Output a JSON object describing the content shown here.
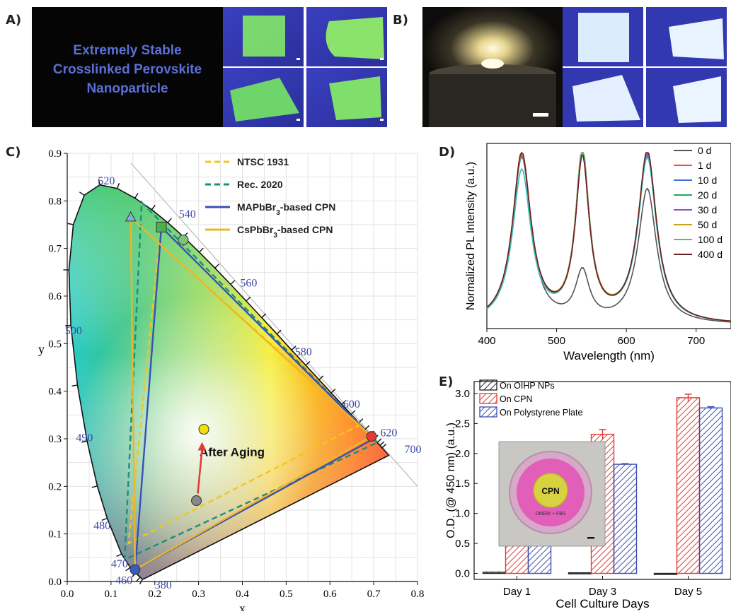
{
  "panels": {
    "a": "A)",
    "b": "B)",
    "c": "C)",
    "d": "D)",
    "e": "E)"
  },
  "panel_a": {
    "title_lines": [
      "Extremely Stable",
      "Crosslinked Perovskite",
      "Nanoparticle"
    ]
  },
  "chart_data": [
    {
      "id": "C",
      "type": "scatter",
      "xlabel": "x",
      "ylabel": "y",
      "xlim": [
        0.0,
        0.8
      ],
      "ylim": [
        0.0,
        0.9
      ],
      "xticks": [
        "0.0",
        "0.1",
        "0.2",
        "0.3",
        "0.4",
        "0.5",
        "0.6",
        "0.7",
        "0.8"
      ],
      "yticks": [
        "0.0",
        "0.1",
        "0.2",
        "0.3",
        "0.4",
        "0.5",
        "0.6",
        "0.7",
        "0.8",
        "0.9"
      ],
      "grid": true,
      "wavelength_labels": [
        {
          "text": "520",
          "x": 0.07,
          "y": 0.835
        },
        {
          "text": "540",
          "x": 0.255,
          "y": 0.765
        },
        {
          "text": "560",
          "x": 0.395,
          "y": 0.62
        },
        {
          "text": "580",
          "x": 0.52,
          "y": 0.475
        },
        {
          "text": "600",
          "x": 0.63,
          "y": 0.365
        },
        {
          "text": "620",
          "x": 0.715,
          "y": 0.305
        },
        {
          "text": "700",
          "x": 0.77,
          "y": 0.27
        },
        {
          "text": "500",
          "x": -0.005,
          "y": 0.52
        },
        {
          "text": "490",
          "x": 0.02,
          "y": 0.295
        },
        {
          "text": "480",
          "x": 0.06,
          "y": 0.11
        },
        {
          "text": "470",
          "x": 0.1,
          "y": 0.03
        },
        {
          "text": "460",
          "x": 0.11,
          "y": -0.005
        },
        {
          "text": "380",
          "x": 0.2,
          "y": -0.015
        }
      ],
      "legend": [
        {
          "label": "NTSC 1931",
          "color": "#f5c518",
          "dash": true
        },
        {
          "label": "Rec. 2020",
          "color": "#1a8f7a",
          "dash": true
        },
        {
          "label": "MAPbBr3-based CPN",
          "color": "#3b4fb4",
          "dash": false
        },
        {
          "label": "CsPbBr3-based CPN",
          "color": "#f0b429",
          "dash": false
        }
      ],
      "series": [
        {
          "name": "NTSC 1931",
          "points": [
            [
              0.67,
              0.33
            ],
            [
              0.21,
              0.71
            ],
            [
              0.14,
              0.08
            ]
          ]
        },
        {
          "name": "Rec. 2020",
          "points": [
            [
              0.708,
              0.292
            ],
            [
              0.17,
              0.797
            ],
            [
              0.131,
              0.046
            ]
          ]
        },
        {
          "name": "MAPbBr3-based CPN",
          "points": [
            [
              0.7,
              0.3
            ],
            [
              0.215,
              0.745
            ],
            [
              0.155,
              0.025
            ]
          ]
        },
        {
          "name": "CsPbBr3-based CPN",
          "points": [
            [
              0.695,
              0.305
            ],
            [
              0.145,
              0.765
            ],
            [
              0.155,
              0.025
            ]
          ]
        }
      ],
      "markers": [
        {
          "shape": "triangle",
          "x": 0.145,
          "y": 0.765,
          "color": "#7fb3d5"
        },
        {
          "shape": "square",
          "x": 0.215,
          "y": 0.745,
          "color": "#4caf50"
        },
        {
          "shape": "circle",
          "x": 0.265,
          "y": 0.718,
          "color": "#7cc47c"
        },
        {
          "shape": "circle",
          "x": 0.695,
          "y": 0.305,
          "color": "#e53935"
        },
        {
          "shape": "circle",
          "x": 0.155,
          "y": 0.025,
          "color": "#3b5bbf"
        },
        {
          "shape": "circle",
          "x": 0.295,
          "y": 0.17,
          "color": "#888888"
        },
        {
          "shape": "circle",
          "x": 0.312,
          "y": 0.32,
          "color": "#f3e000"
        }
      ],
      "annotation": "After Aging"
    },
    {
      "id": "D",
      "type": "line",
      "xlabel": "Wavelength (nm)",
      "ylabel": "Normalized PL Intensity (a.u.)",
      "xlim": [
        400,
        750
      ],
      "xticks": [
        "400",
        "500",
        "600",
        "700"
      ],
      "legend_placement": "top-right",
      "peaks": [
        450,
        537,
        630
      ],
      "series": [
        {
          "name": "0 d",
          "color": "#555555",
          "heights": [
            0.98,
            0.28,
            0.78
          ]
        },
        {
          "name": "1 d",
          "color": "#ff4444",
          "heights": [
            0.98,
            0.93,
            0.97
          ]
        },
        {
          "name": "10 d",
          "color": "#3d6fd6",
          "heights": [
            0.96,
            0.95,
            0.98
          ]
        },
        {
          "name": "20 d",
          "color": "#22aa55",
          "heights": [
            0.95,
            0.94,
            0.96
          ]
        },
        {
          "name": "30 d",
          "color": "#9b4dc9",
          "heights": [
            0.96,
            0.93,
            0.97
          ]
        },
        {
          "name": "50 d",
          "color": "#c8a21c",
          "heights": [
            0.97,
            0.98,
            0.99
          ]
        },
        {
          "name": "100 d",
          "color": "#30c0c0",
          "heights": [
            0.88,
            0.96,
            0.95
          ]
        },
        {
          "name": "400 d",
          "color": "#6b1f1f",
          "heights": [
            0.98,
            0.93,
            0.99
          ]
        }
      ]
    },
    {
      "id": "E",
      "type": "bar",
      "xlabel": "Cell Culture Days",
      "ylabel": "O.D. (@ 450 nm) (a.u.)",
      "ylim": [
        -0.1,
        3.2
      ],
      "yticks": [
        "0.0",
        "0.5",
        "1.0",
        "1.5",
        "2.0",
        "2.5",
        "3.0"
      ],
      "categories": [
        "Day 1",
        "Day 3",
        "Day 5"
      ],
      "series": [
        {
          "name": "On OIHP NPs",
          "color": "#222222",
          "values": [
            0.02,
            0.01,
            0.0
          ]
        },
        {
          "name": "On CPN",
          "color": "#e53935",
          "values": [
            0.74,
            2.32,
            2.93
          ]
        },
        {
          "name": "On Polystyrene Plate",
          "color": "#3b4fb4",
          "values": [
            0.69,
            1.82,
            2.76
          ]
        }
      ],
      "errors": [
        [
          0,
          0.03,
          0.02
        ],
        [
          0,
          0.08,
          0.01
        ],
        [
          0,
          0.06,
          0.02
        ]
      ],
      "inset": {
        "disc_label": "CPN",
        "medium_label": "DMEM + FBS"
      }
    }
  ]
}
